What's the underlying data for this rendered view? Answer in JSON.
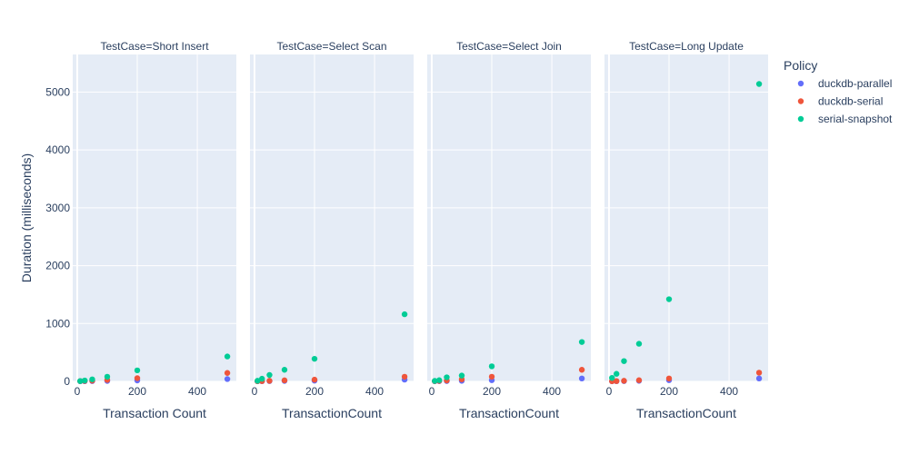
{
  "chart_data": {
    "type": "scatter",
    "y_axis": {
      "title": "Duration (milliseconds)",
      "range": [
        0,
        5650
      ],
      "ticks": [
        0,
        1000,
        2000,
        3000,
        4000,
        5000
      ],
      "tick_labels": [
        "0",
        "1000",
        "2000",
        "3000",
        "4000",
        "5000"
      ],
      "grid": true
    },
    "x_axis": {
      "range": [
        -15,
        530
      ],
      "ticks": [
        0,
        200,
        400
      ],
      "tick_labels": [
        "0",
        "200",
        "400"
      ],
      "grid": true
    },
    "legend": {
      "title": "Policy",
      "placement": "right",
      "entries": [
        {
          "name": "duckdb-parallel",
          "color": "#636efa"
        },
        {
          "name": "duckdb-serial",
          "color": "#ef553b"
        },
        {
          "name": "serial-snapshot",
          "color": "#00cc96"
        }
      ]
    },
    "facets": [
      {
        "title": "TestCase=Short Insert",
        "xlabel": "Transaction Count",
        "series": [
          {
            "name": "duckdb-parallel",
            "x": [
              10,
              25,
              50,
              100,
              200,
              500
            ],
            "y": [
              2,
              3,
              5,
              8,
              15,
              40
            ]
          },
          {
            "name": "duckdb-serial",
            "x": [
              10,
              25,
              50,
              100,
              200,
              500
            ],
            "y": [
              4,
              7,
              12,
              25,
              55,
              145
            ]
          },
          {
            "name": "serial-snapshot",
            "x": [
              10,
              25,
              50,
              100,
              200,
              500
            ],
            "y": [
              5,
              15,
              35,
              80,
              190,
              430
            ]
          }
        ]
      },
      {
        "title": "TestCase=Select Scan",
        "xlabel": "TransactionCount",
        "series": [
          {
            "name": "duckdb-parallel",
            "x": [
              10,
              25,
              50,
              100,
              200,
              500
            ],
            "y": [
              2,
              3,
              5,
              8,
              12,
              30
            ]
          },
          {
            "name": "duckdb-serial",
            "x": [
              10,
              25,
              50,
              100,
              200,
              500
            ],
            "y": [
              3,
              5,
              10,
              18,
              30,
              80
            ]
          },
          {
            "name": "serial-snapshot",
            "x": [
              10,
              25,
              50,
              100,
              200,
              500
            ],
            "y": [
              10,
              45,
              110,
              200,
              390,
              1160
            ]
          }
        ]
      },
      {
        "title": "TestCase=Select Join",
        "xlabel": "TransactionCount",
        "series": [
          {
            "name": "duckdb-parallel",
            "x": [
              10,
              25,
              50,
              100,
              200,
              500
            ],
            "y": [
              2,
              4,
              6,
              10,
              20,
              50
            ]
          },
          {
            "name": "duckdb-serial",
            "x": [
              10,
              25,
              50,
              100,
              200,
              500
            ],
            "y": [
              4,
              8,
              15,
              35,
              80,
              200
            ]
          },
          {
            "name": "serial-snapshot",
            "x": [
              10,
              25,
              50,
              100,
              200,
              500
            ],
            "y": [
              8,
              20,
              70,
              100,
              260,
              680
            ]
          }
        ]
      },
      {
        "title": "TestCase=Long Update",
        "xlabel": "TransactionCount",
        "series": [
          {
            "name": "duckdb-parallel",
            "x": [
              10,
              25,
              50,
              100,
              200,
              500
            ],
            "y": [
              2,
              3,
              5,
              10,
              20,
              50
            ]
          },
          {
            "name": "duckdb-serial",
            "x": [
              10,
              25,
              50,
              100,
              200,
              500
            ],
            "y": [
              3,
              5,
              10,
              20,
              50,
              150
            ]
          },
          {
            "name": "serial-snapshot",
            "x": [
              10,
              25,
              50,
              100,
              200,
              500
            ],
            "y": [
              60,
              130,
              350,
              650,
              1420,
              5140
            ]
          }
        ]
      }
    ]
  }
}
